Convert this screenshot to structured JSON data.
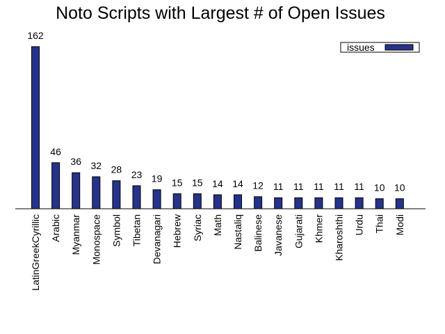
{
  "chart_data": {
    "type": "bar",
    "title": "Noto Scripts with Largest # of Open Issues",
    "xlabel": "",
    "ylabel": "",
    "ylim": [
      0,
      162
    ],
    "grid": false,
    "legend_position": "top-right",
    "categories": [
      "LatinGreekCyrillic",
      "Arabic",
      "Myanmar",
      "Monospace",
      "Symbol",
      "Tibetan",
      "Devanagari",
      "Hebrew",
      "Syriac",
      "Math",
      "Nastaliq",
      "Balinese",
      "Javanese",
      "Gujarati",
      "Khmer",
      "Kharoshthi",
      "Urdu",
      "Thai",
      "Modi"
    ],
    "series": [
      {
        "name": "issues",
        "color": "#26338a",
        "values": [
          162,
          46,
          36,
          32,
          28,
          23,
          19,
          15,
          15,
          14,
          14,
          12,
          11,
          11,
          11,
          11,
          11,
          10,
          10
        ]
      }
    ]
  }
}
